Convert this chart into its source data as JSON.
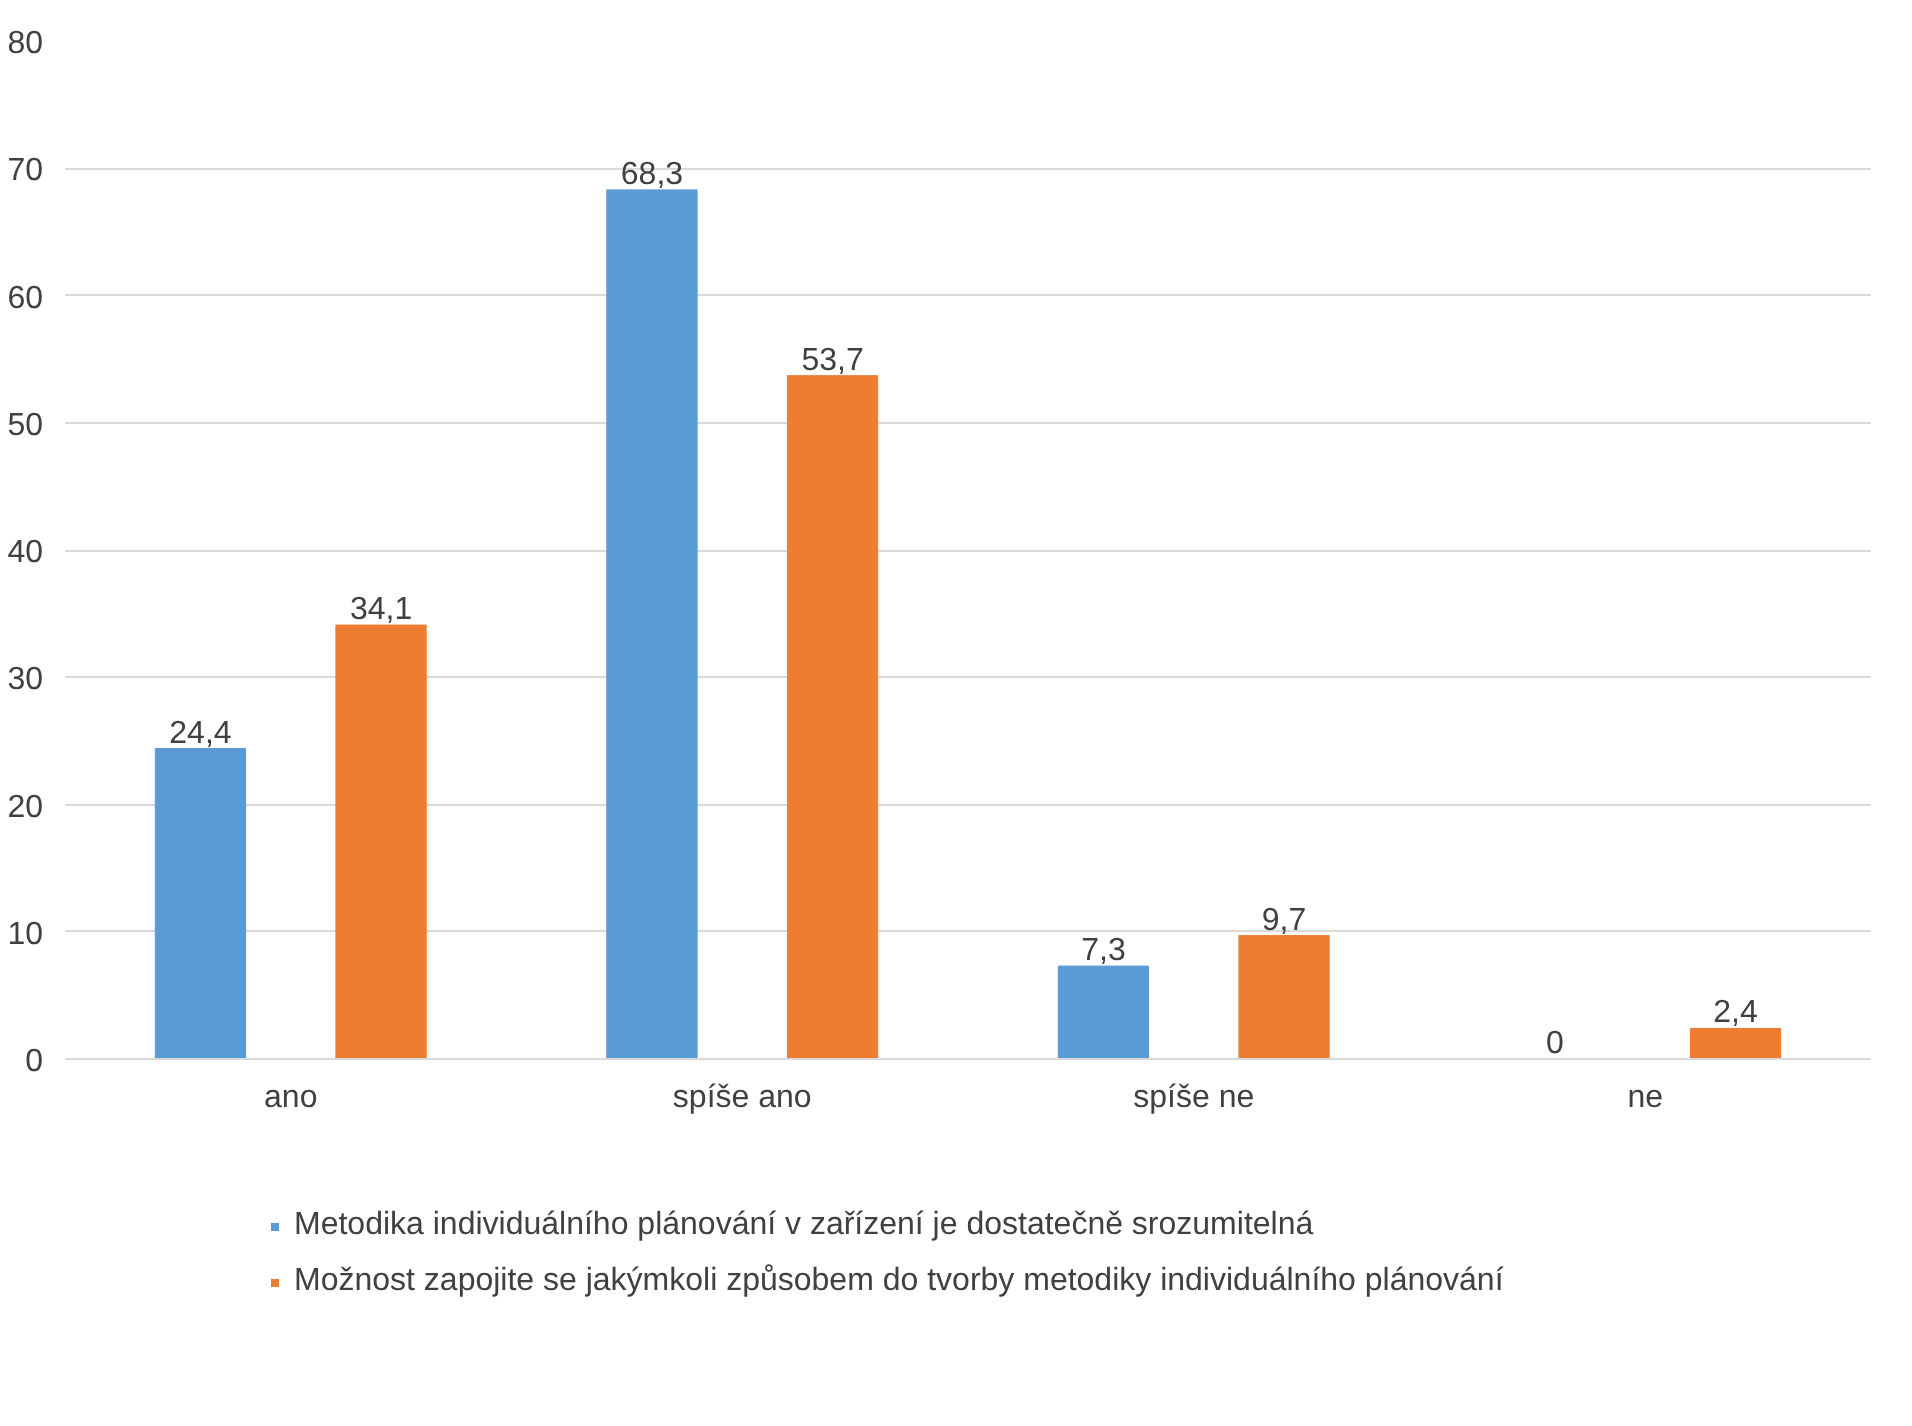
{
  "chart_data": {
    "type": "bar",
    "categories": [
      "ano",
      "spíše ano",
      "spíše ne",
      "ne"
    ],
    "series": [
      {
        "name": "Metodika individuálního plánování v zařízení je dostatečně srozumitelná",
        "color": "#5b9bd5",
        "values": [
          24.4,
          68.3,
          7.3,
          0
        ],
        "value_labels": [
          "24,4",
          "68,3",
          "7,3",
          "0"
        ]
      },
      {
        "name": "Možnost zapojite se jakýmkoli způsobem do tvorby metodiky individuálního plánování",
        "color": "#ed7d31",
        "values": [
          34.1,
          53.7,
          9.7,
          2.4
        ],
        "value_labels": [
          "34,1",
          "53,7",
          "9,7",
          "2,4"
        ]
      }
    ],
    "ylim": [
      0,
      80
    ],
    "yticks": [
      0,
      10,
      20,
      30,
      40,
      50,
      60,
      70,
      80
    ],
    "grid": "y",
    "legend": "bottom"
  }
}
